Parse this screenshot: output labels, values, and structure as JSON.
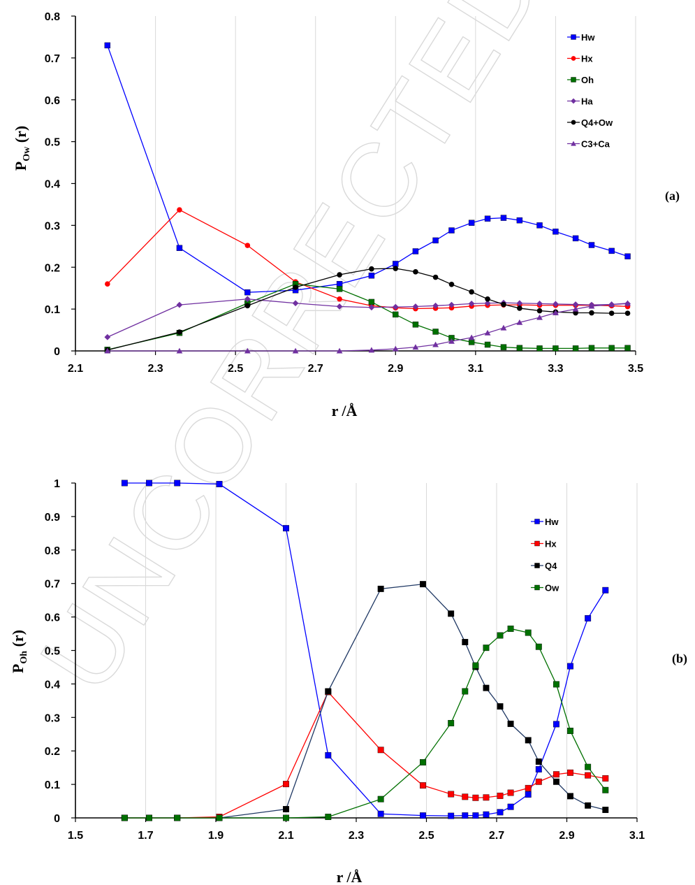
{
  "watermark": "UNCORRECTED PROOF",
  "chart_data": [
    {
      "type": "line",
      "panel_label": "(a)",
      "xlabel": "r /Å",
      "ylabel_main": "P",
      "ylabel_sub": "Ow",
      "ylabel_tail": " (r)",
      "xlim": [
        2.1,
        3.5
      ],
      "ylim": [
        0,
        0.8
      ],
      "xticks": [
        2.1,
        2.3,
        2.5,
        2.7,
        2.9,
        3.1,
        3.3,
        3.5
      ],
      "xtick_labels": [
        "2.1",
        "2.3",
        "2.5",
        "2.7",
        "2.9",
        "3.1",
        "3.3",
        "3.5"
      ],
      "yticks": [
        0,
        0.1,
        0.2,
        0.3,
        0.4,
        0.5,
        0.6,
        0.7,
        0.8
      ],
      "ytick_labels": [
        "0",
        "0.1",
        "0.2",
        "0.3",
        "0.4",
        "0.5",
        "0.6",
        "0.7",
        "0.8"
      ],
      "legend_position": "top-right",
      "grid": "vertical",
      "x": [
        2.18,
        2.36,
        2.53,
        2.65,
        2.76,
        2.84,
        2.9,
        2.95,
        3.0,
        3.04,
        3.09,
        3.13,
        3.17,
        3.21,
        3.26,
        3.3,
        3.35,
        3.39,
        3.44,
        3.48
      ],
      "series": [
        {
          "name": "Hw",
          "color": "#0000ff",
          "marker": "square",
          "values": [
            0.73,
            0.246,
            0.14,
            0.145,
            0.16,
            0.18,
            0.208,
            0.238,
            0.264,
            0.288,
            0.306,
            0.316,
            0.318,
            0.312,
            0.3,
            0.285,
            0.269,
            0.253,
            0.239,
            0.226
          ]
        },
        {
          "name": "Hx",
          "color": "#ff0000",
          "marker": "circle",
          "values": [
            0.16,
            0.337,
            0.252,
            0.165,
            0.124,
            0.108,
            0.103,
            0.101,
            0.102,
            0.103,
            0.107,
            0.109,
            0.11,
            0.11,
            0.109,
            0.109,
            0.109,
            0.109,
            0.108,
            0.106
          ]
        },
        {
          "name": "Oh",
          "color": "#007000",
          "marker": "square",
          "values": [
            0.003,
            0.043,
            0.114,
            0.16,
            0.148,
            0.117,
            0.087,
            0.063,
            0.046,
            0.031,
            0.021,
            0.015,
            0.009,
            0.007,
            0.006,
            0.006,
            0.006,
            0.007,
            0.007,
            0.007
          ]
        },
        {
          "name": "Ha",
          "color": "#7030a0",
          "marker": "diamond",
          "values": [
            0.033,
            0.11,
            0.124,
            0.114,
            0.106,
            0.104,
            0.105,
            0.106,
            0.108,
            0.11,
            0.113,
            0.114,
            0.115,
            0.114,
            0.113,
            0.112,
            0.111,
            0.11,
            0.111,
            0.113
          ]
        },
        {
          "name": "Q4+Ow",
          "color": "#000000",
          "marker": "circle",
          "values": [
            0.002,
            0.045,
            0.108,
            0.152,
            0.182,
            0.196,
            0.197,
            0.189,
            0.176,
            0.159,
            0.141,
            0.124,
            0.111,
            0.102,
            0.096,
            0.093,
            0.091,
            0.091,
            0.09,
            0.09
          ]
        },
        {
          "name": "C3+Ca",
          "color": "#7030a0",
          "marker": "triangle",
          "values": [
            0,
            0,
            0,
            0,
            0,
            0.002,
            0.005,
            0.009,
            0.015,
            0.023,
            0.032,
            0.043,
            0.055,
            0.068,
            0.08,
            0.091,
            0.1,
            0.107,
            0.111,
            0.114
          ]
        }
      ]
    },
    {
      "type": "line",
      "panel_label": "(b)",
      "xlabel": "r /Å",
      "ylabel_main": "P",
      "ylabel_sub": "Oh",
      "ylabel_tail": " (r)",
      "xlim": [
        1.5,
        3.1
      ],
      "ylim": [
        0,
        1
      ],
      "xticks": [
        1.5,
        1.7,
        1.9,
        2.1,
        2.3,
        2.5,
        2.7,
        2.9,
        3.1
      ],
      "xtick_labels": [
        "1.5",
        "1.7",
        "1.9",
        "2.1",
        "2.3",
        "2.5",
        "2.7",
        "2.9",
        "3.1"
      ],
      "yticks": [
        0,
        0.1,
        0.2,
        0.3,
        0.4,
        0.5,
        0.6,
        0.7,
        0.8,
        0.9,
        1
      ],
      "ytick_labels": [
        "0",
        "0.1",
        "0.2",
        "0.3",
        "0.4",
        "0.5",
        "0.6",
        "0.7",
        "0.8",
        "0.9",
        "1"
      ],
      "legend_position": "top-right",
      "grid": "vertical",
      "x": [
        1.64,
        1.71,
        1.79,
        1.91,
        2.1,
        2.22,
        2.37,
        2.49,
        2.57,
        2.61,
        2.64,
        2.67,
        2.71,
        2.74,
        2.79,
        2.82,
        2.87,
        2.91,
        2.96,
        3.01
      ],
      "series": [
        {
          "name": "Hw",
          "color": "#0000ff",
          "values": [
            1.0,
            1.0,
            1.0,
            0.997,
            0.865,
            0.187,
            0.012,
            0.007,
            0.006,
            0.007,
            0.007,
            0.01,
            0.017,
            0.033,
            0.07,
            0.145,
            0.28,
            0.453,
            0.596,
            0.68
          ]
        },
        {
          "name": "Hx",
          "color": "#ff0000",
          "values": [
            0,
            0,
            0,
            0.003,
            0.101,
            0.376,
            0.203,
            0.097,
            0.071,
            0.063,
            0.06,
            0.061,
            0.066,
            0.075,
            0.089,
            0.108,
            0.13,
            0.135,
            0.127,
            0.118
          ]
        },
        {
          "name": "Q4",
          "color": "#000000",
          "line": "#1f3864",
          "values": [
            0,
            0,
            0,
            0,
            0.026,
            0.378,
            0.684,
            0.698,
            0.61,
            0.525,
            0.451,
            0.388,
            0.333,
            0.281,
            0.232,
            0.168,
            0.108,
            0.065,
            0.037,
            0.024
          ]
        },
        {
          "name": "Ow",
          "color": "#007000",
          "values": [
            0,
            0,
            0,
            0,
            0,
            0.003,
            0.056,
            0.166,
            0.283,
            0.378,
            0.455,
            0.508,
            0.545,
            0.565,
            0.553,
            0.511,
            0.399,
            0.26,
            0.152,
            0.083
          ]
        }
      ]
    }
  ]
}
